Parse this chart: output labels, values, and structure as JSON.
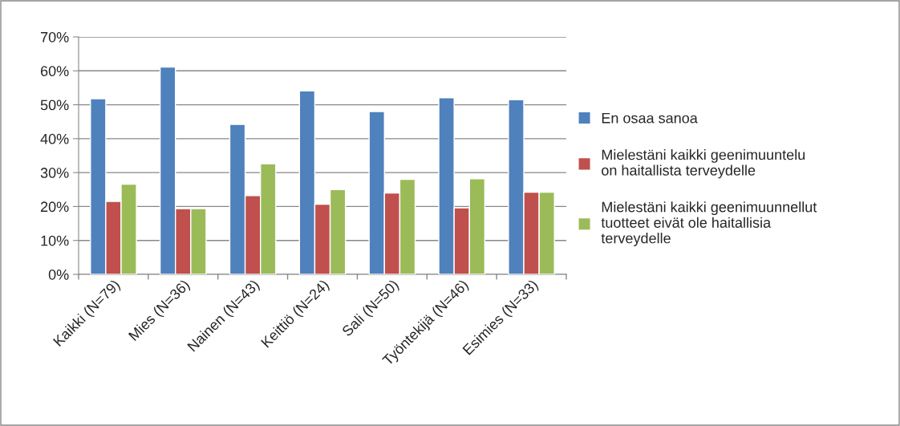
{
  "chart_data": {
    "type": "bar",
    "categories": [
      "Kaikki (N=79)",
      "Mies (N=36)",
      "Nainen (N=43)",
      "Keittiö (N=24)",
      "Sali (N=50)",
      "Työntekijä (N=46)",
      "Esimies (N=33)"
    ],
    "series": [
      {
        "name": "En osaa sanoa",
        "color": "#4f81bd",
        "values": [
          51.8,
          61.1,
          44.2,
          54.1,
          48.0,
          52.1,
          51.5
        ]
      },
      {
        "name": "Mielestäni kaikki geenimuuntelu\non haitallista terveydelle",
        "color": "#c0504d",
        "values": [
          21.5,
          19.4,
          23.2,
          20.7,
          24.0,
          19.6,
          24.2
        ]
      },
      {
        "name": "Mielestäni kaikki geenimuunnellut\ntuotteet eivät ole haitallisia\nterveydelle",
        "color": "#9bbb59",
        "values": [
          26.6,
          19.4,
          32.6,
          25.0,
          28.0,
          28.2,
          24.2
        ]
      }
    ],
    "ylim": [
      0,
      70
    ],
    "yticks": [
      {
        "value": 0,
        "label": "0%"
      },
      {
        "value": 10,
        "label": "10%"
      },
      {
        "value": 20,
        "label": "20%"
      },
      {
        "value": 30,
        "label": "30%"
      },
      {
        "value": 40,
        "label": "40%"
      },
      {
        "value": 50,
        "label": "50%"
      },
      {
        "value": 60,
        "label": "60%"
      },
      {
        "value": 70,
        "label": "70%"
      }
    ],
    "grid": "y",
    "legend": "right"
  }
}
